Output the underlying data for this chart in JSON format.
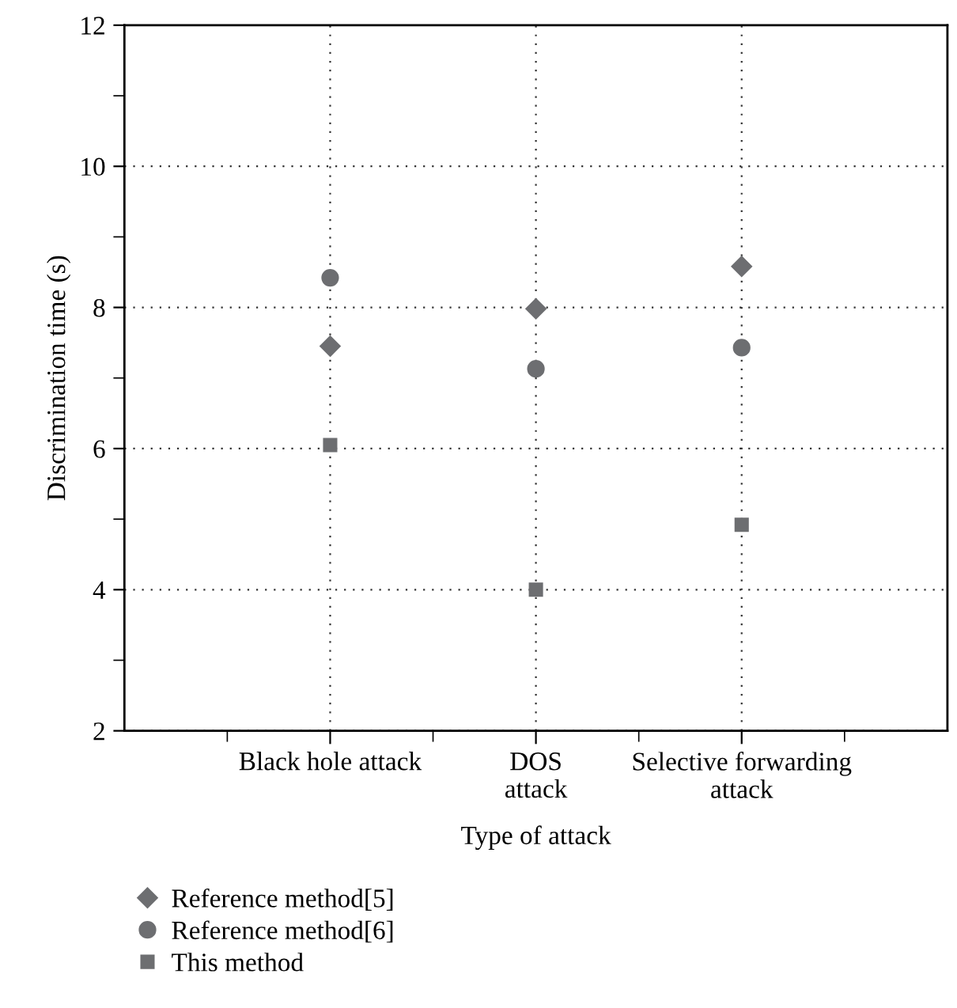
{
  "chart_data": {
    "type": "scatter",
    "xlabel": "Type of attack",
    "ylabel": "Discrimination time (s)",
    "categories": [
      "Black hole attack",
      "DOS\nattack",
      "Selective forwarding\nattack"
    ],
    "series": [
      {
        "name": "Reference method[5]",
        "color": "#6d6e71",
        "marker": "diamond",
        "values": [
          7.45,
          7.98,
          8.58
        ]
      },
      {
        "name": "Reference method[6]",
        "color": "#6d6e71",
        "marker": "circle",
        "values": [
          8.42,
          7.13,
          7.43
        ]
      },
      {
        "name": "This method",
        "color": "#6d6e71",
        "marker": "square",
        "values": [
          6.05,
          4.0,
          4.92
        ]
      }
    ],
    "ylim": [
      2,
      12
    ],
    "yticks": [
      2,
      4,
      6,
      8,
      10,
      12
    ],
    "grid": true,
    "legend": "bottom"
  }
}
